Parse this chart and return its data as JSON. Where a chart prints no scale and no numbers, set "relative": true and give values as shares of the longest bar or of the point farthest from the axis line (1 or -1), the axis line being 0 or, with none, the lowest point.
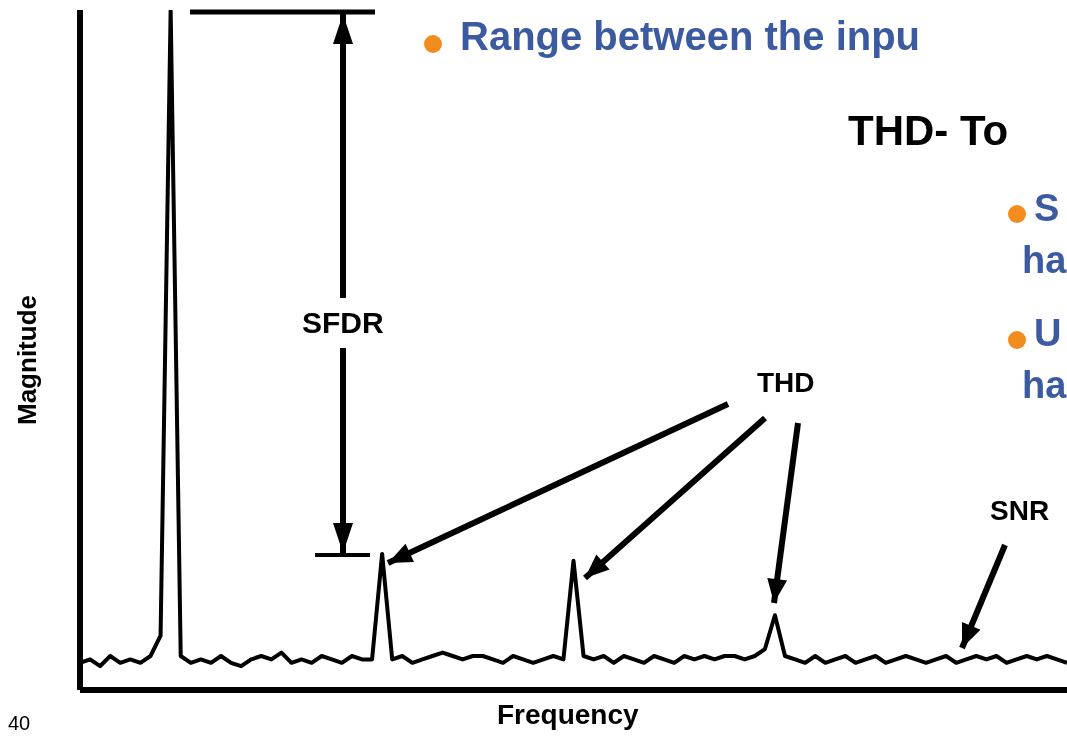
{
  "chart_data": {
    "type": "line",
    "relative": true,
    "xlabel": "Frequency",
    "ylabel": "Magnitude",
    "color": "#000000",
    "categories": [
      null,
      null,
      null,
      null,
      null,
      null,
      null,
      null,
      null,
      null,
      null,
      null,
      null,
      null,
      null,
      null,
      null,
      null,
      null,
      null,
      null,
      null,
      null,
      null,
      null,
      null,
      null,
      null,
      null,
      null,
      null,
      null,
      null,
      null,
      null,
      null,
      null,
      null,
      null,
      null,
      null,
      null,
      null,
      null,
      null,
      null,
      null,
      null,
      null,
      null,
      null,
      null,
      null,
      null,
      null,
      null,
      null,
      null,
      null,
      null,
      null,
      null,
      null,
      null,
      null,
      null,
      null,
      null,
      null,
      null,
      null,
      null,
      null,
      null,
      null,
      null,
      null,
      null,
      null,
      null,
      null,
      null,
      null,
      null,
      null,
      null,
      null,
      null,
      null,
      null,
      null,
      null,
      null,
      null,
      null,
      null,
      null,
      null,
      null
    ],
    "values": [
      0.04,
      0.045,
      0.035,
      0.05,
      0.04,
      0.045,
      0.04,
      0.05,
      0.08,
      1,
      0.05,
      0.04,
      0.045,
      0.04,
      0.05,
      0.04,
      0.035,
      0.045,
      0.05,
      0.045,
      0.055,
      0.04,
      0.045,
      0.04,
      0.05,
      0.045,
      0.04,
      0.05,
      0.045,
      0.045,
      0.2,
      0.045,
      0.05,
      0.04,
      0.045,
      0.05,
      0.055,
      0.05,
      0.045,
      0.05,
      0.05,
      0.045,
      0.04,
      0.05,
      0.045,
      0.04,
      0.045,
      0.05,
      0.045,
      0.19,
      0.05,
      0.045,
      0.05,
      0.04,
      0.05,
      0.045,
      0.04,
      0.05,
      0.045,
      0.04,
      0.05,
      0.045,
      0.05,
      0.045,
      0.05,
      0.05,
      0.045,
      0.05,
      0.06,
      0.11,
      0.05,
      0.045,
      0.04,
      0.05,
      0.04,
      0.045,
      0.05,
      0.04,
      0.045,
      0.05,
      0.04,
      0.045,
      0.05,
      0.045,
      0.04,
      0.045,
      0.05,
      0.04,
      0.045,
      0.05,
      0.045,
      0.05,
      0.04,
      0.045,
      0.05,
      0.045,
      0.05,
      0.045,
      0.04
    ],
    "annotations": [
      "Range between the inpu",
      "THD- To",
      "S",
      "ha",
      "U",
      "ha",
      "SFDR",
      "THD",
      "SNR",
      "40"
    ]
  }
}
